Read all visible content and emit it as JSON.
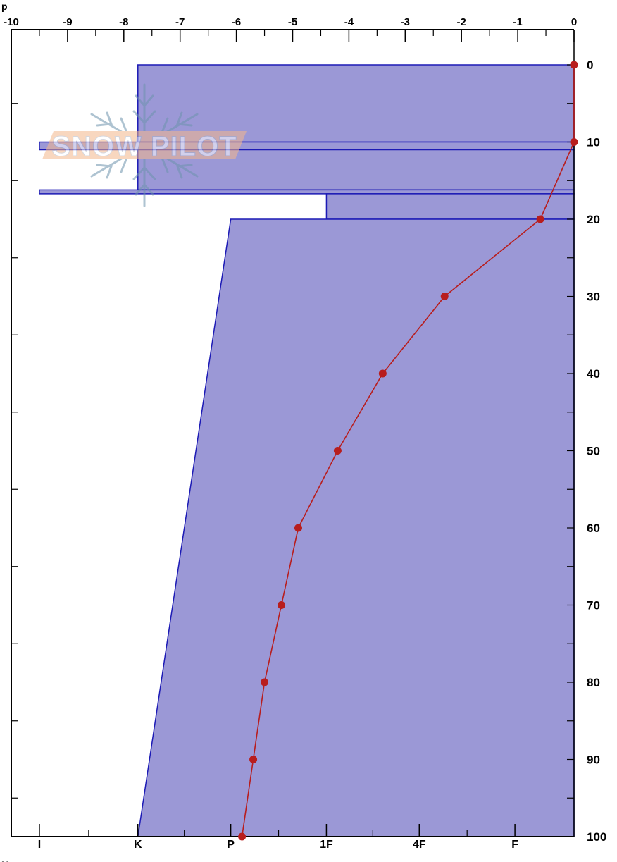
{
  "chart_data": {
    "type": "line",
    "top_axis": {
      "ticks": [
        -10,
        -9,
        -8,
        -7,
        -6,
        -5,
        -4,
        -3,
        -2,
        -1,
        0
      ],
      "labels": [
        "-10",
        "-9",
        "-8",
        "-7",
        "-6",
        "-5",
        "-4",
        "-3",
        "-2",
        "-1",
        "0"
      ],
      "range": [
        -10,
        0
      ]
    },
    "right_axis": {
      "ticks": [
        0,
        10,
        20,
        30,
        40,
        50,
        60,
        70,
        80,
        90,
        100
      ],
      "labels": [
        "0",
        "10",
        "20",
        "30",
        "40",
        "50",
        "60",
        "70",
        "80",
        "90",
        "100"
      ],
      "range": [
        0,
        100
      ]
    },
    "bottom_axis": {
      "labels": [
        {
          "text": "I",
          "x": -9.5
        },
        {
          "text": "K",
          "x": -7.75
        },
        {
          "text": "P",
          "x": -6.1
        },
        {
          "text": "1F",
          "x": -4.4
        },
        {
          "text": "4F",
          "x": -2.75
        },
        {
          "text": "F",
          "x": -1.05
        }
      ]
    },
    "hardness_layers": [
      {
        "top": 0,
        "bottom": 10,
        "left_top": -7.75,
        "left_bottom": -7.75
      },
      {
        "top": 10,
        "bottom": 11,
        "left_top": -9.5,
        "left_bottom": -9.5
      },
      {
        "top": 11,
        "bottom": 16.2,
        "left_top": -7.75,
        "left_bottom": -7.75
      },
      {
        "top": 16.2,
        "bottom": 16.7,
        "left_top": -9.5,
        "left_bottom": -9.5
      },
      {
        "top": 16.7,
        "bottom": 20,
        "left_top": -4.4,
        "left_bottom": -4.4
      },
      {
        "top": 20,
        "bottom": 100,
        "left_top": -6.1,
        "left_bottom": -7.75
      }
    ],
    "temperature_profile": {
      "depth": [
        0,
        10,
        20,
        30,
        40,
        50,
        60,
        70,
        80,
        90,
        100
      ],
      "temp": [
        0,
        0,
        -0.6,
        -2.3,
        -3.4,
        -4.2,
        -4.9,
        -5.2,
        -5.5,
        -5.7,
        -5.9
      ]
    },
    "colors": {
      "fill": "#9b98d6",
      "outline": "#1c1ab5",
      "profile": "#b81d1d",
      "axis": "#000000"
    }
  },
  "watermark": {
    "text": "SNOW PILOT",
    "icon": "snowflake-icon"
  },
  "corner_fragments": {
    "top_left": "p",
    "bottom_left": "No"
  }
}
